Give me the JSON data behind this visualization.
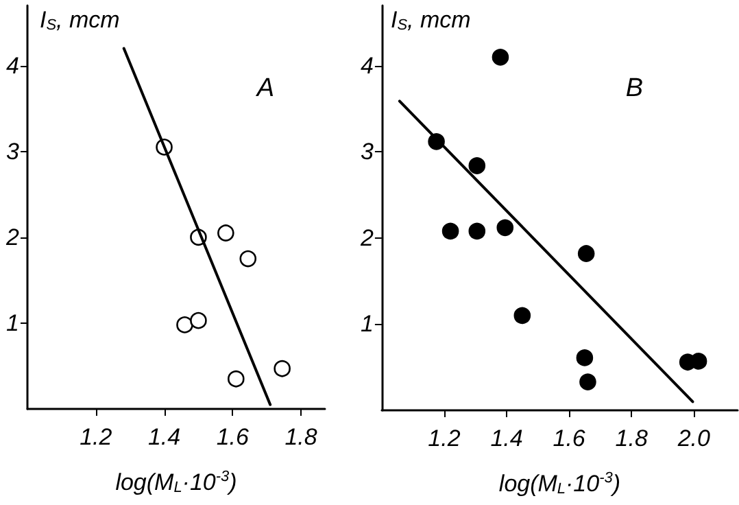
{
  "chart_data": [
    {
      "type": "scatter",
      "title": "A",
      "xlabel": "log(M$_{L}$·10$^{-3}$)",
      "ylabel": "I$_{S}$, mcm",
      "xlim": [
        1.0,
        1.87
      ],
      "ylim": [
        0,
        4.7
      ],
      "xticks": [
        1.2,
        1.4,
        1.6,
        1.8
      ],
      "yticks": [
        1,
        2,
        3,
        4
      ],
      "marker": "circle",
      "series": [
        {
          "color": "#ffffff",
          "x": [
            1.4,
            1.5,
            1.58,
            1.645,
            1.46,
            1.5,
            1.61,
            1.745
          ],
          "values": [
            3.05,
            2.0,
            2.05,
            1.75,
            0.98,
            1.03,
            0.35,
            0.47
          ]
        },
        {
          "type": "line",
          "marker": "none",
          "line_style": "solid",
          "color": "#000000",
          "x": [
            1.282,
            1.71
          ],
          "values": [
            4.2,
            0.05
          ]
        }
      ]
    },
    {
      "type": "scatter",
      "title": "B",
      "xlabel": "log(M$_{L}$·10$^{-3}$)",
      "ylabel": "I$_{S}$, mcm",
      "xlim": [
        1.0,
        2.14
      ],
      "ylim": [
        0,
        4.7
      ],
      "xticks": [
        1.2,
        1.4,
        1.6,
        1.8,
        {
          "value": 2,
          "label": "2.0"
        }
      ],
      "yticks": [
        1,
        2,
        3,
        4
      ],
      "marker": "circle",
      "series": [
        {
          "color": "#000000",
          "x": [
            1.175,
            1.22,
            1.305,
            1.305,
            1.38,
            1.395,
            1.45,
            1.655,
            1.65,
            1.66,
            1.98,
            2.015
          ],
          "values": [
            3.12,
            2.08,
            2.84,
            2.08,
            4.1,
            2.12,
            1.1,
            1.82,
            0.61,
            0.33,
            0.56,
            0.57
          ]
        },
        {
          "type": "line",
          "marker": "none",
          "line_style": "solid",
          "color": "#000000",
          "x": [
            1.057,
            1.996
          ],
          "values": [
            3.59,
            0.1
          ]
        }
      ]
    }
  ]
}
